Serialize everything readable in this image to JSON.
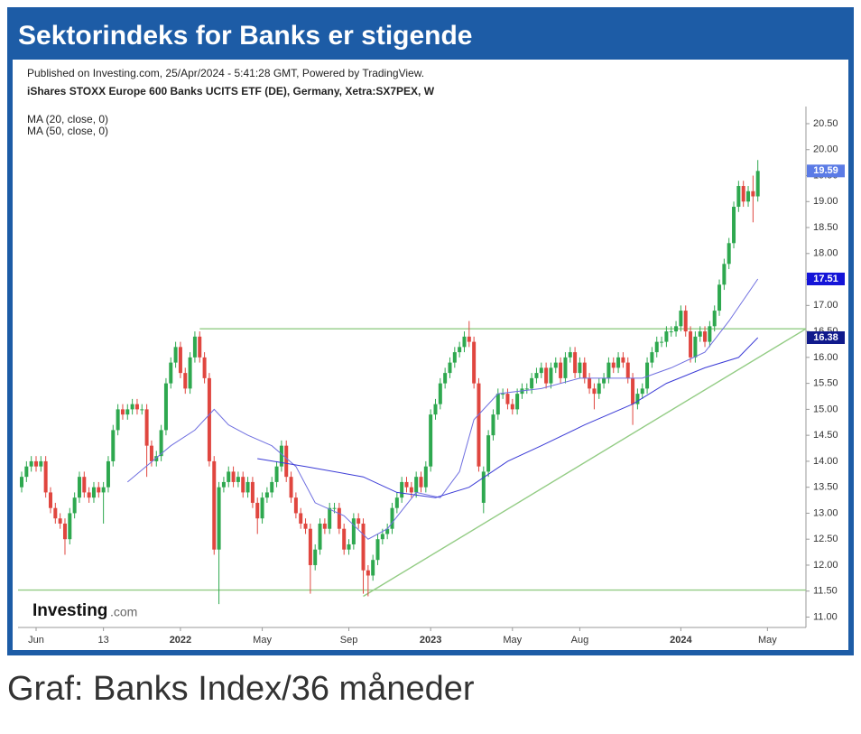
{
  "caption": "Graf: Banks Index/36 måneder",
  "chart_data": {
    "type": "candlestick",
    "title": "Sektorindeks for Banks er stigende",
    "subtitle": "Published on Investing.com, 25/Apr/2024 - 5:41:28 GMT, Powered by TradingView.",
    "instrument": "iShares STOXX Europe 600 Banks UCITS ETF (DE), Germany, Xetra:SX7PEX, W",
    "logo": {
      "name": "Investing",
      "suffix": ".com"
    },
    "up_color": "#2ea84f",
    "down_color": "#e0463f",
    "xlim": [
      -0.75,
      163
    ],
    "ylim": [
      10.8,
      20.83
    ],
    "xticks": [
      {
        "value": 3,
        "label": "Jun"
      },
      {
        "value": 17,
        "label": "13"
      },
      {
        "value": 33,
        "label": "2022"
      },
      {
        "value": 50,
        "label": "May"
      },
      {
        "value": 68,
        "label": "Sep"
      },
      {
        "value": 85,
        "label": "2023"
      },
      {
        "value": 102,
        "label": "May"
      },
      {
        "value": 116,
        "label": "Aug"
      },
      {
        "value": 137,
        "label": "2024"
      },
      {
        "value": 155,
        "label": "May"
      }
    ],
    "yticks": [
      {
        "value": 11,
        "label": "11.00"
      },
      {
        "value": 11.5,
        "label": "11.50"
      },
      {
        "value": 12,
        "label": "12.00"
      },
      {
        "value": 12.5,
        "label": "12.50"
      },
      {
        "value": 13,
        "label": "13.00"
      },
      {
        "value": 13.5,
        "label": "13.50"
      },
      {
        "value": 14,
        "label": "14.00"
      },
      {
        "value": 14.5,
        "label": "14.50"
      },
      {
        "value": 15,
        "label": "15.00"
      },
      {
        "value": 15.5,
        "label": "15.50"
      },
      {
        "value": 16,
        "label": "16.00"
      },
      {
        "value": 16.5,
        "label": "16.50"
      },
      {
        "value": 17,
        "label": "17.00"
      },
      {
        "value": 17.5,
        "label": "17.50"
      },
      {
        "value": 18,
        "label": "18.00"
      },
      {
        "value": 18.5,
        "label": "18.50"
      },
      {
        "value": 19,
        "label": "19.00"
      },
      {
        "value": 19.5,
        "label": "19.50"
      },
      {
        "value": 20,
        "label": "20.00"
      },
      {
        "value": 20.5,
        "label": "20.50"
      }
    ],
    "open": [
      13.5,
      13.7,
      13.9,
      14.0,
      13.9,
      14.0,
      13.4,
      13.1,
      12.9,
      12.8,
      12.5,
      13.0,
      13.3,
      13.7,
      13.4,
      13.3,
      13.5,
      13.4,
      13.5,
      14.0,
      14.6,
      15.0,
      14.9,
      15.0,
      15.1,
      15.0,
      15.0,
      14.3,
      14.0,
      14.1,
      14.6,
      15.5,
      15.9,
      16.2,
      15.7,
      15.4,
      16.0,
      16.4,
      16.0,
      15.6,
      14.0,
      12.3,
      13.5,
      13.6,
      13.8,
      13.6,
      13.7,
      13.4,
      13.6,
      13.2,
      12.9,
      13.3,
      13.4,
      13.6,
      13.9,
      14.3,
      13.7,
      13.3,
      13.0,
      12.8,
      12.7,
      12.0,
      12.3,
      12.8,
      12.7,
      13.1,
      13.1,
      12.7,
      12.3,
      12.4,
      12.9,
      12.8,
      11.9,
      11.8,
      12.1,
      12.5,
      12.6,
      12.7,
      13.1,
      13.3,
      13.6,
      13.5,
      13.4,
      13.7,
      13.5,
      13.9,
      14.9,
      15.1,
      15.5,
      15.7,
      15.9,
      16.1,
      16.2,
      16.4,
      16.3,
      15.5,
      13.2,
      13.8,
      14.5,
      14.9,
      15.3,
      15.3,
      15.1,
      15.0,
      15.3,
      15.4,
      15.4,
      15.6,
      15.7,
      15.8,
      15.5,
      15.8,
      15.9,
      15.6,
      16.0,
      16.1,
      15.7,
      15.9,
      15.6,
      15.4,
      15.3,
      15.5,
      15.6,
      15.9,
      15.8,
      16.0,
      15.9,
      15.6,
      15.1,
      15.3,
      15.4,
      15.9,
      16.1,
      16.3,
      16.3,
      16.5,
      16.5,
      16.6,
      16.9,
      16.5,
      16.0,
      16.4,
      16.5,
      16.3,
      16.6,
      16.9,
      17.4,
      17.8,
      18.2,
      18.9,
      19.3,
      19.0,
      19.2,
      19.1
    ],
    "high": [
      13.8,
      14.0,
      14.1,
      14.1,
      14.1,
      14.1,
      13.5,
      13.2,
      13.0,
      12.9,
      13.1,
      13.4,
      13.8,
      13.8,
      13.5,
      13.6,
      13.6,
      13.6,
      14.1,
      14.7,
      15.1,
      15.1,
      15.1,
      15.2,
      15.2,
      15.1,
      15.1,
      14.4,
      14.2,
      14.7,
      15.6,
      16.0,
      16.3,
      16.3,
      15.8,
      16.1,
      16.5,
      16.5,
      16.1,
      15.7,
      14.1,
      13.6,
      13.7,
      13.9,
      13.9,
      13.8,
      13.8,
      13.7,
      13.7,
      13.3,
      13.4,
      13.5,
      13.7,
      14.0,
      14.4,
      14.4,
      13.8,
      13.4,
      13.1,
      12.9,
      12.8,
      12.4,
      12.9,
      12.9,
      13.2,
      13.2,
      13.2,
      12.8,
      12.5,
      13.0,
      13.0,
      12.9,
      12.0,
      12.2,
      12.6,
      12.7,
      12.8,
      13.2,
      13.4,
      13.7,
      13.7,
      13.6,
      13.8,
      13.8,
      14.0,
      15.0,
      15.2,
      15.6,
      15.8,
      16.0,
      16.2,
      16.3,
      16.5,
      16.7,
      16.4,
      15.6,
      13.9,
      14.6,
      15.0,
      15.4,
      15.4,
      15.4,
      15.2,
      15.4,
      15.5,
      15.5,
      15.7,
      15.8,
      15.9,
      15.9,
      15.9,
      16.0,
      16.0,
      16.1,
      16.2,
      16.2,
      16.0,
      16.0,
      15.7,
      15.5,
      15.6,
      15.7,
      16.0,
      16.0,
      16.1,
      16.1,
      16.0,
      15.7,
      15.4,
      15.5,
      16.0,
      16.2,
      16.4,
      16.4,
      16.6,
      16.6,
      16.7,
      17.0,
      17.0,
      16.6,
      16.5,
      16.6,
      16.6,
      16.7,
      17.0,
      17.5,
      17.9,
      18.3,
      19.0,
      19.4,
      19.4,
      19.3,
      19.5,
      19.8
    ],
    "low": [
      13.4,
      13.6,
      13.8,
      13.8,
      13.8,
      13.3,
      13.0,
      12.8,
      12.7,
      12.2,
      12.4,
      12.9,
      13.2,
      13.3,
      13.2,
      13.2,
      13.3,
      12.8,
      13.4,
      13.9,
      14.5,
      14.8,
      14.8,
      14.9,
      14.9,
      14.9,
      13.7,
      13.9,
      13.9,
      14.0,
      14.5,
      15.4,
      15.8,
      15.6,
      15.3,
      15.3,
      15.9,
      15.9,
      15.5,
      13.9,
      12.2,
      11.25,
      13.4,
      13.5,
      13.5,
      13.5,
      13.3,
      13.3,
      13.1,
      12.6,
      12.8,
      13.2,
      13.3,
      13.5,
      13.8,
      13.6,
      13.2,
      12.9,
      12.7,
      12.6,
      11.45,
      11.9,
      12.2,
      12.6,
      12.6,
      13.0,
      12.6,
      12.2,
      12.2,
      12.3,
      12.7,
      11.45,
      11.4,
      11.7,
      12.0,
      12.4,
      12.5,
      12.6,
      13.0,
      13.2,
      13.4,
      13.3,
      13.3,
      13.4,
      13.4,
      13.8,
      14.8,
      15.0,
      15.4,
      15.6,
      15.8,
      16.0,
      16.1,
      16.2,
      15.4,
      13.8,
      13.0,
      13.7,
      14.4,
      14.8,
      15.2,
      15.0,
      14.9,
      14.9,
      15.2,
      15.3,
      15.3,
      15.5,
      15.6,
      15.4,
      15.4,
      15.7,
      15.5,
      15.5,
      15.9,
      15.6,
      15.6,
      15.5,
      15.3,
      15.0,
      15.2,
      15.4,
      15.5,
      15.7,
      15.7,
      15.8,
      15.5,
      14.7,
      15.0,
      15.2,
      15.3,
      15.8,
      16.0,
      16.2,
      16.2,
      16.4,
      16.4,
      16.5,
      16.4,
      15.9,
      15.9,
      16.3,
      16.2,
      16.2,
      16.5,
      16.8,
      17.3,
      17.7,
      18.1,
      18.8,
      18.9,
      18.9,
      18.6,
      19.0
    ],
    "close": [
      13.7,
      13.9,
      14.0,
      13.9,
      14.0,
      13.4,
      13.1,
      12.9,
      12.8,
      12.5,
      13.0,
      13.3,
      13.7,
      13.4,
      13.3,
      13.5,
      13.4,
      13.5,
      14.0,
      14.6,
      15.0,
      14.9,
      15.0,
      15.1,
      15.0,
      15.0,
      14.3,
      14.0,
      14.1,
      14.6,
      15.5,
      15.9,
      16.2,
      15.7,
      15.4,
      16.0,
      16.4,
      16.0,
      15.6,
      14.0,
      12.3,
      13.5,
      13.6,
      13.8,
      13.6,
      13.7,
      13.4,
      13.6,
      13.2,
      12.9,
      13.3,
      13.4,
      13.6,
      13.9,
      14.3,
      13.7,
      13.3,
      13.0,
      12.8,
      12.7,
      12.0,
      12.3,
      12.8,
      12.7,
      13.1,
      13.1,
      12.7,
      12.3,
      12.4,
      12.9,
      12.8,
      11.9,
      11.8,
      12.1,
      12.5,
      12.6,
      12.7,
      13.1,
      13.3,
      13.6,
      13.5,
      13.4,
      13.7,
      13.5,
      13.9,
      14.9,
      15.1,
      15.5,
      15.7,
      15.9,
      16.1,
      16.2,
      16.4,
      16.3,
      15.5,
      13.9,
      13.8,
      14.5,
      14.9,
      15.3,
      15.3,
      15.1,
      15.0,
      15.3,
      15.4,
      15.4,
      15.6,
      15.7,
      15.8,
      15.5,
      15.8,
      15.9,
      15.6,
      16.0,
      16.1,
      15.7,
      15.9,
      15.6,
      15.4,
      15.3,
      15.5,
      15.6,
      15.9,
      15.8,
      16.0,
      15.9,
      15.6,
      15.1,
      15.3,
      15.4,
      15.9,
      16.1,
      16.3,
      16.3,
      16.5,
      16.5,
      16.6,
      16.9,
      16.5,
      16.0,
      16.4,
      16.5,
      16.3,
      16.6,
      16.9,
      17.4,
      17.8,
      18.2,
      18.9,
      19.3,
      19.0,
      19.2,
      19.1,
      19.59
    ],
    "series": [
      {
        "name": "MA (20, close, 0)",
        "color": "#6f6fe0",
        "x": [
          22,
          31,
          36,
          40,
          43,
          47,
          52,
          57,
          61,
          67,
          72,
          76,
          82,
          87,
          91,
          94,
          99,
          108,
          116,
          123,
          129,
          135,
          142,
          147,
          153
        ],
        "values": [
          13.6,
          14.3,
          14.6,
          15.0,
          14.7,
          14.5,
          14.3,
          13.9,
          13.2,
          12.95,
          12.5,
          12.7,
          13.4,
          13.3,
          13.8,
          14.8,
          15.3,
          15.4,
          15.6,
          15.6,
          15.6,
          15.8,
          16.1,
          16.7,
          17.51
        ]
      },
      {
        "name": "MA (50, close, 0)",
        "color": "#3a3ad6",
        "x": [
          49,
          59,
          71,
          78,
          86,
          93,
          101,
          108,
          117,
          127,
          134,
          142,
          149,
          153
        ],
        "values": [
          14.05,
          13.9,
          13.7,
          13.4,
          13.3,
          13.5,
          14.0,
          14.3,
          14.7,
          15.1,
          15.5,
          15.8,
          16.0,
          16.38
        ]
      }
    ],
    "lines": [
      {
        "color": "#93cc84",
        "x": [
          37,
          163
        ],
        "values": [
          16.55,
          16.55
        ]
      },
      {
        "color": "#93cc84",
        "x": [
          -0.75,
          163
        ],
        "values": [
          11.52,
          11.52
        ]
      },
      {
        "color": "#93cc84",
        "x": [
          71,
          163
        ],
        "values": [
          11.4,
          16.55
        ]
      }
    ],
    "price_labels": [
      {
        "value": 19.59,
        "color": "#5b7be6"
      },
      {
        "value": 17.51,
        "color": "#1414d8"
      },
      {
        "value": 16.38,
        "color": "#101a8c"
      }
    ]
  }
}
